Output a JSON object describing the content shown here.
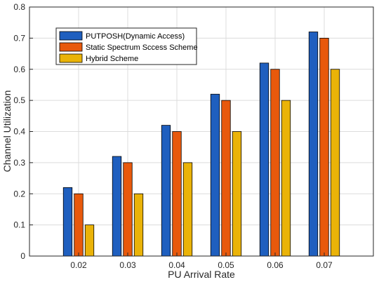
{
  "chart_data": {
    "type": "bar",
    "title": "",
    "xlabel": "PU Arrival Rate",
    "ylabel": "Channel Utilization",
    "categories": [
      "0.02",
      "0.03",
      "0.04",
      "0.05",
      "0.06",
      "0.07"
    ],
    "series": [
      {
        "name": "PUTPOSH(Dynamic Access)",
        "color": "#1f5fbf",
        "values": [
          0.22,
          0.32,
          0.42,
          0.52,
          0.62,
          0.72
        ]
      },
      {
        "name": "Static Spectrum Sccess Scheme",
        "color": "#e8590c",
        "values": [
          0.2,
          0.3,
          0.4,
          0.5,
          0.6,
          0.7
        ]
      },
      {
        "name": "Hybrid Scheme",
        "color": "#eab308",
        "values": [
          0.1,
          0.2,
          0.3,
          0.4,
          0.5,
          0.6
        ]
      }
    ],
    "ylim": [
      0,
      0.8
    ],
    "yticks": [
      "0",
      "0.1",
      "0.2",
      "0.3",
      "0.4",
      "0.5",
      "0.6",
      "0.7",
      "0.8"
    ],
    "grid": true,
    "legend_position": "top-left"
  }
}
